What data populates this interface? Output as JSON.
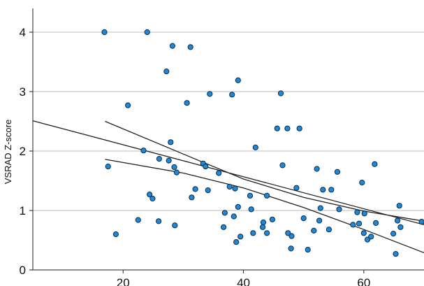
{
  "chart_data": {
    "type": "scatter",
    "title": "",
    "xlabel": "",
    "ylabel": "VSRAD Z-score",
    "xlim": [
      5,
      70
    ],
    "ylim": [
      0,
      4.4
    ],
    "x_ticks": [
      20,
      40,
      60
    ],
    "y_ticks": [
      0,
      1,
      2,
      3,
      4
    ],
    "grid": "horizontal",
    "marker_color": "#1e88d9",
    "marker_edge": "#0b2a44",
    "points": [
      [
        16.9,
        4.0
      ],
      [
        24.0,
        4.0
      ],
      [
        28.2,
        3.77
      ],
      [
        31.2,
        3.75
      ],
      [
        27.2,
        3.34
      ],
      [
        39.1,
        3.19
      ],
      [
        34.4,
        2.96
      ],
      [
        38.1,
        2.95
      ],
      [
        46.2,
        2.97
      ],
      [
        20.8,
        2.77
      ],
      [
        30.6,
        2.81
      ],
      [
        45.6,
        2.38
      ],
      [
        47.3,
        2.38
      ],
      [
        49.3,
        2.38
      ],
      [
        42.0,
        2.06
      ],
      [
        23.4,
        2.01
      ],
      [
        27.9,
        2.15
      ],
      [
        26.0,
        1.87
      ],
      [
        27.6,
        1.84
      ],
      [
        28.5,
        1.73
      ],
      [
        28.9,
        1.64
      ],
      [
        17.5,
        1.74
      ],
      [
        33.3,
        1.79
      ],
      [
        33.7,
        1.74
      ],
      [
        35.9,
        1.63
      ],
      [
        46.5,
        1.76
      ],
      [
        52.2,
        1.7
      ],
      [
        55.6,
        1.65
      ],
      [
        61.8,
        1.78
      ],
      [
        59.7,
        1.47
      ],
      [
        32.0,
        1.36
      ],
      [
        34.1,
        1.34
      ],
      [
        24.4,
        1.27
      ],
      [
        24.9,
        1.2
      ],
      [
        31.4,
        1.22
      ],
      [
        37.7,
        1.4
      ],
      [
        38.6,
        1.37
      ],
      [
        41.1,
        1.25
      ],
      [
        43.9,
        1.25
      ],
      [
        48.8,
        1.38
      ],
      [
        53.2,
        1.35
      ],
      [
        54.6,
        1.35
      ],
      [
        39.1,
        1.06
      ],
      [
        41.3,
        1.02
      ],
      [
        36.9,
        0.96
      ],
      [
        38.4,
        0.9
      ],
      [
        52.8,
        1.04
      ],
      [
        55.9,
        1.02
      ],
      [
        58.9,
        0.97
      ],
      [
        60.1,
        0.95
      ],
      [
        65.9,
        1.08
      ],
      [
        22.5,
        0.84
      ],
      [
        25.9,
        0.82
      ],
      [
        36.7,
        0.72
      ],
      [
        43.3,
        0.8
      ],
      [
        44.8,
        0.85
      ],
      [
        50.0,
        0.87
      ],
      [
        52.6,
        0.83
      ],
      [
        58.2,
        0.76
      ],
      [
        59.2,
        0.78
      ],
      [
        62.0,
        0.79
      ],
      [
        65.6,
        0.83
      ],
      [
        66.1,
        0.72
      ],
      [
        69.6,
        0.81
      ],
      [
        18.8,
        0.6
      ],
      [
        28.6,
        0.75
      ],
      [
        39.5,
        0.56
      ],
      [
        41.6,
        0.62
      ],
      [
        43.2,
        0.72
      ],
      [
        43.9,
        0.62
      ],
      [
        47.4,
        0.62
      ],
      [
        48.0,
        0.57
      ],
      [
        51.7,
        0.66
      ],
      [
        54.2,
        0.68
      ],
      [
        60.0,
        0.62
      ],
      [
        60.6,
        0.51
      ],
      [
        61.2,
        0.56
      ],
      [
        64.9,
        0.61
      ],
      [
        38.8,
        0.47
      ],
      [
        47.9,
        0.36
      ],
      [
        50.7,
        0.34
      ],
      [
        65.3,
        0.27
      ]
    ],
    "fit_line": [
      [
        5,
        2.51
      ],
      [
        70,
        0.76
      ]
    ],
    "ci_lower": [
      [
        17,
        1.86
      ],
      [
        30,
        1.63
      ],
      [
        40,
        1.38
      ],
      [
        50,
        1.05
      ],
      [
        60,
        0.68
      ],
      [
        70,
        0.29
      ]
    ],
    "ci_upper": [
      [
        17,
        2.5
      ],
      [
        30,
        1.95
      ],
      [
        40,
        1.53
      ],
      [
        50,
        1.22
      ],
      [
        60,
        0.99
      ],
      [
        70,
        0.82
      ]
    ]
  }
}
